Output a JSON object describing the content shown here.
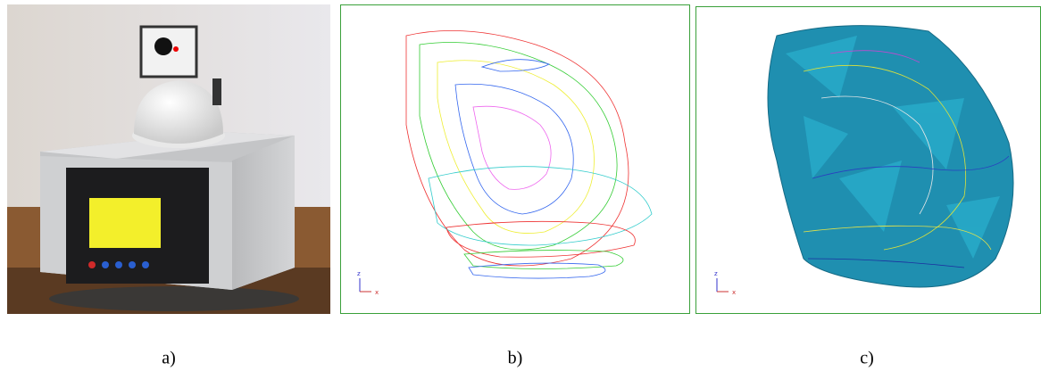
{
  "panels": [
    {
      "label": "a)"
    },
    {
      "label": "b)",
      "axis_labels": [
        "z",
        "x"
      ]
    },
    {
      "label": "c)",
      "axis_labels": [
        "z",
        "x"
      ]
    }
  ]
}
